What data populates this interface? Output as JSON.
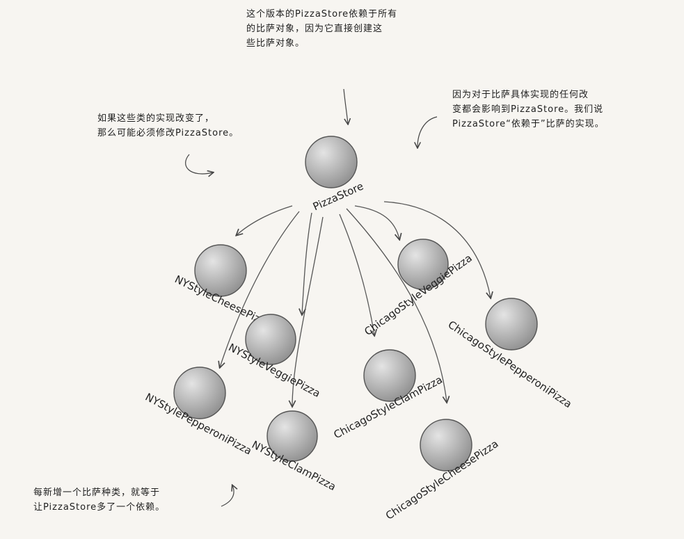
{
  "annotations": {
    "top": "这个版本的PizzaStore依赖于所有\n的比萨对象，因为它直接创建这\n些比萨对象。",
    "right": "因为对于比萨具体实现的任何改\n变都会影响到PizzaStore。我们说\nPizzaStore“依赖于”比萨的实现。",
    "left": "如果这些类的实现改变了，\n那么可能必须修改PizzaStore。",
    "bottom": "每新增一个比萨种类，就等于\n让PizzaStore多了一个依赖。"
  },
  "diagram": {
    "root": {
      "id": "store",
      "label": "PizzaStore"
    },
    "nodes": [
      {
        "id": "ny-cheese",
        "label": "NYStyleCheesePizza"
      },
      {
        "id": "ny-veggie",
        "label": "NYStyleVeggiePizza"
      },
      {
        "id": "ny-pepperoni",
        "label": "NYStylePepperoniPizza"
      },
      {
        "id": "ny-clam",
        "label": "NYStyleClamPizza"
      },
      {
        "id": "chi-veggie",
        "label": "ChicagoStyleVeggiePizza"
      },
      {
        "id": "chi-pepperoni",
        "label": "ChicagoStylePepperoniPizza"
      },
      {
        "id": "chi-clam",
        "label": "ChicagoStyleClamPizza"
      },
      {
        "id": "chi-cheese",
        "label": "ChicagoStyleCheesePizza"
      }
    ],
    "edges": [
      {
        "from": "store",
        "to": "ny-cheese"
      },
      {
        "from": "store",
        "to": "ny-pepperoni"
      },
      {
        "from": "store",
        "to": "ny-veggie"
      },
      {
        "from": "store",
        "to": "ny-clam"
      },
      {
        "from": "store",
        "to": "chi-clam"
      },
      {
        "from": "store",
        "to": "chi-veggie"
      },
      {
        "from": "store",
        "to": "chi-cheese"
      },
      {
        "from": "store",
        "to": "chi-pepperoni"
      }
    ]
  },
  "colors": {
    "circle_light": "#e4e4e4",
    "circle_dark": "#8e8e8e",
    "stroke": "#555555"
  }
}
